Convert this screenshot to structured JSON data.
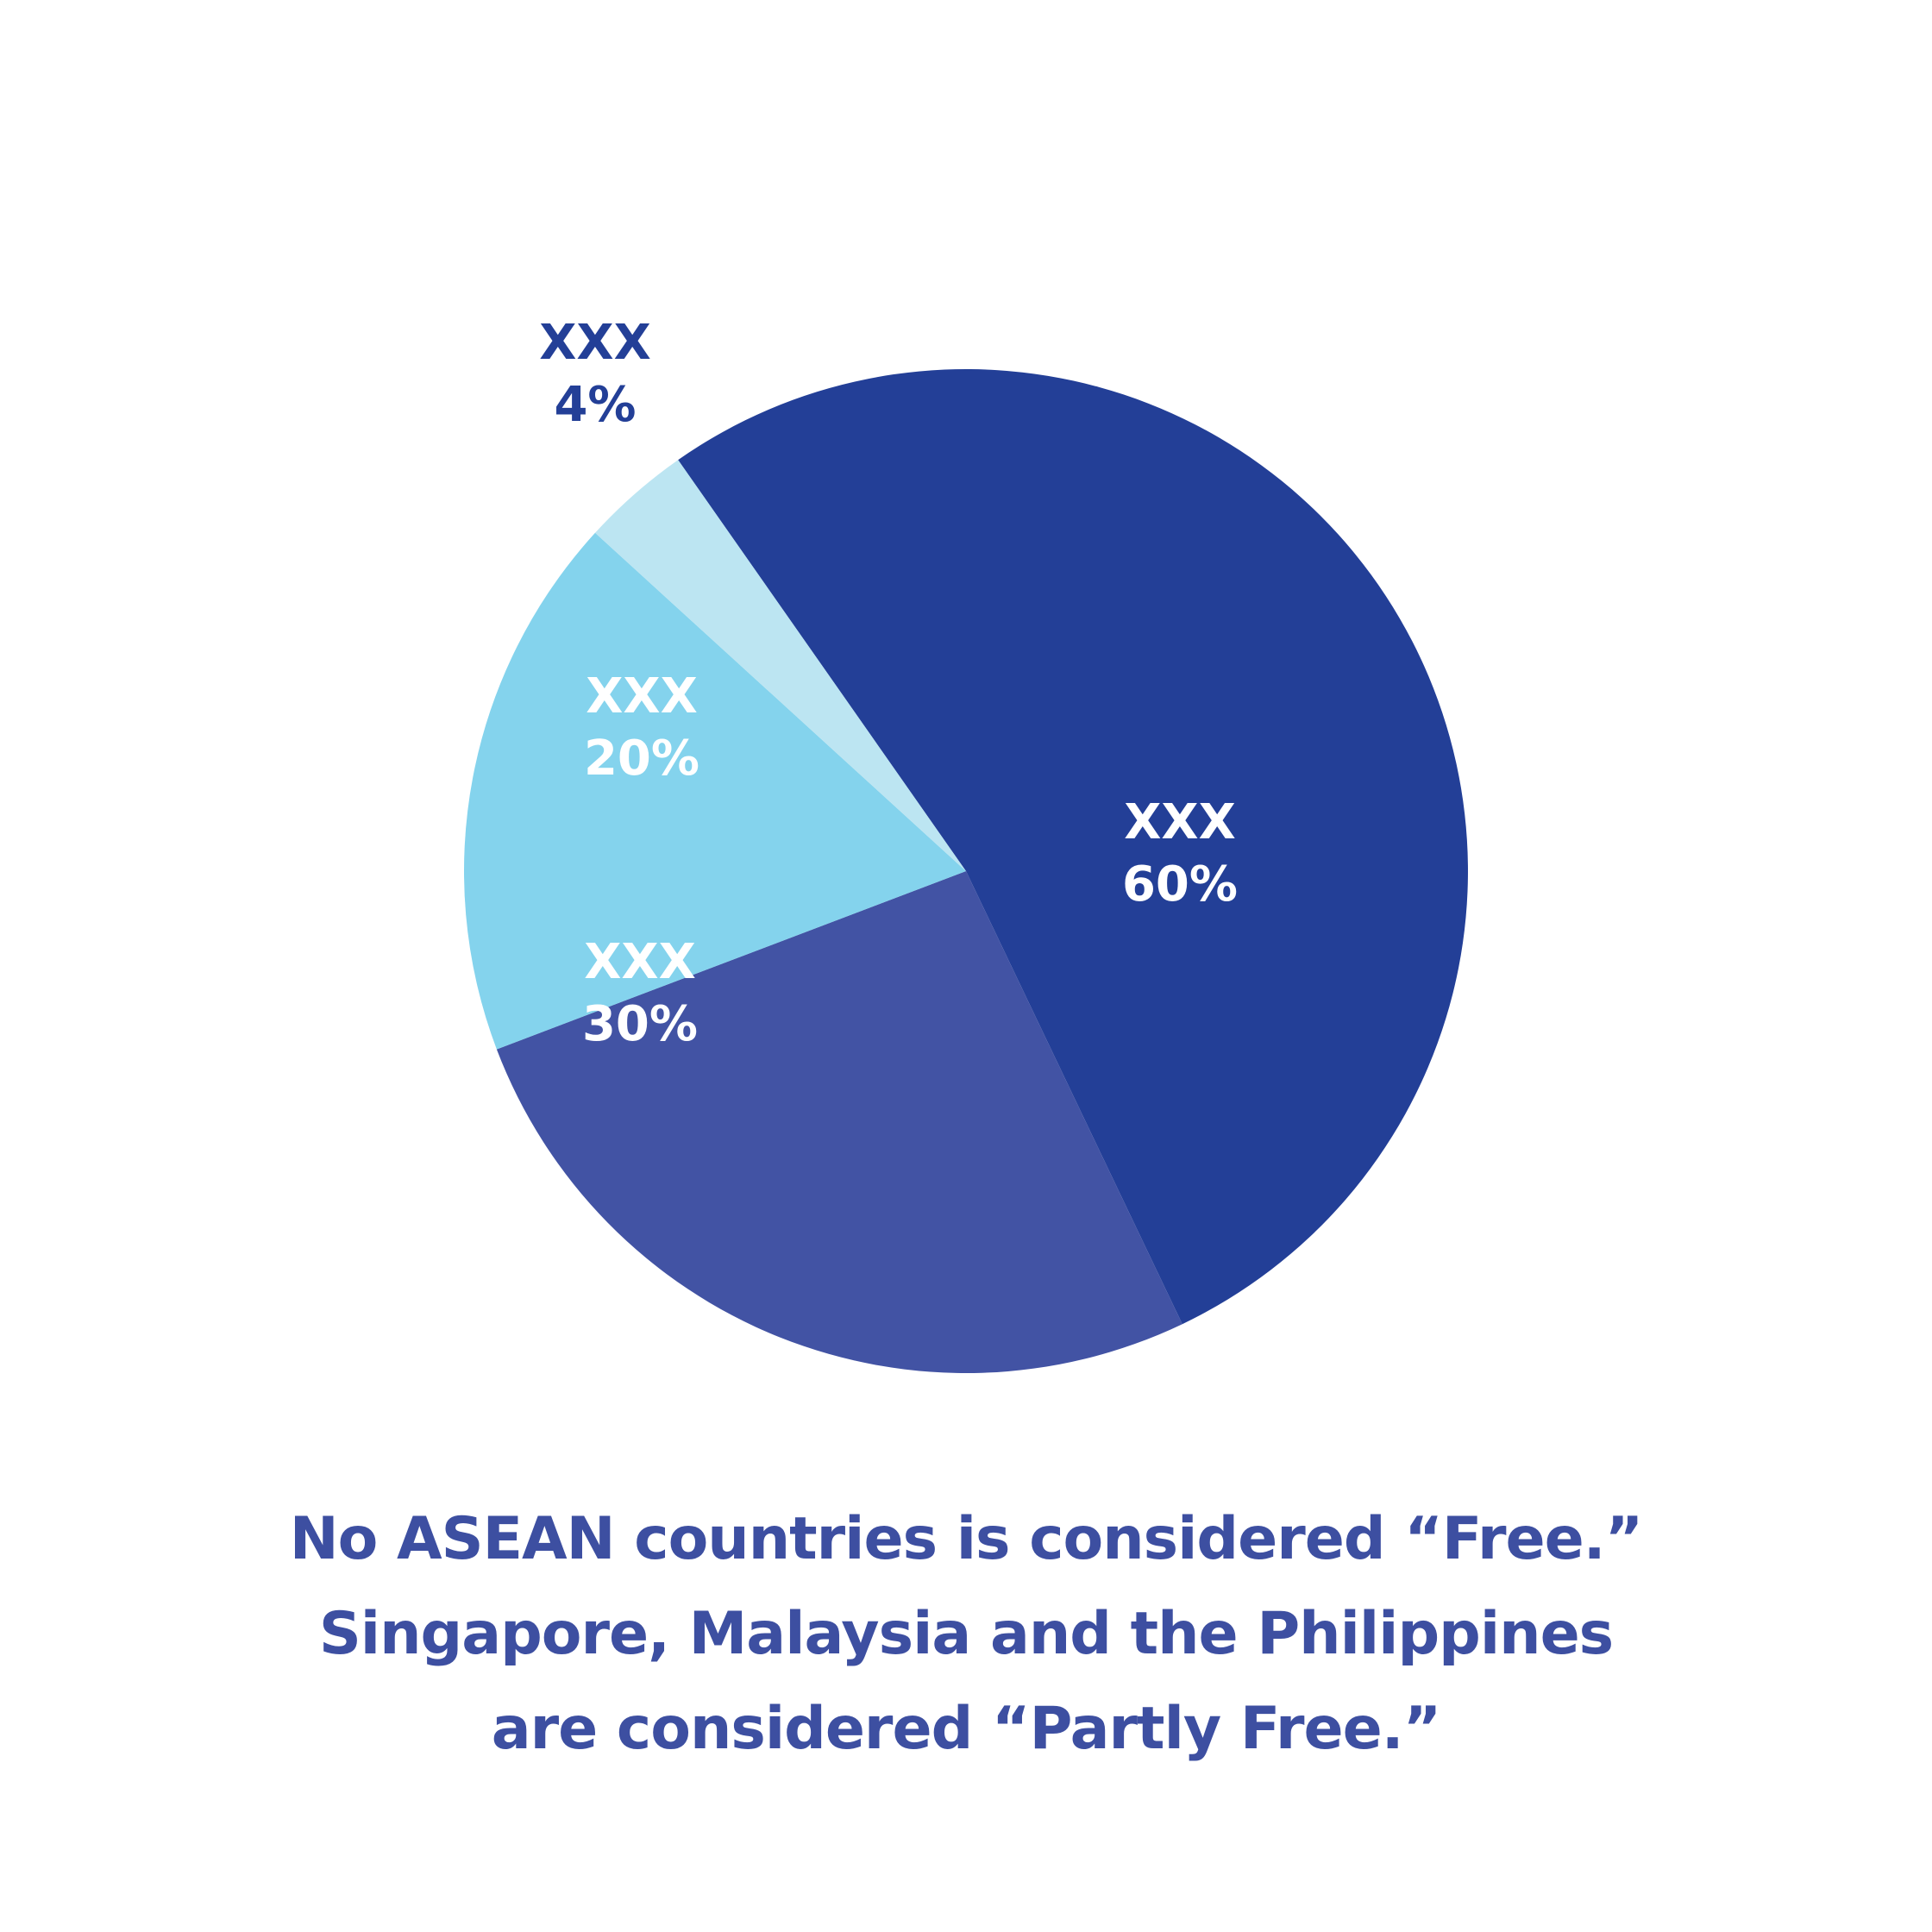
{
  "chart_data": {
    "type": "pie",
    "slices": [
      {
        "label": "XXX",
        "value": 60,
        "value_text": "60%",
        "color": "#233f97",
        "label_color": "#ffffff"
      },
      {
        "label": "XXX",
        "value": 30,
        "value_text": "30%",
        "color": "#4253a4",
        "label_color": "#ffffff"
      },
      {
        "label": "XXX",
        "value": 20,
        "value_text": "20%",
        "color": "#84d3ed",
        "label_color": "#ffffff"
      },
      {
        "label": "XXX",
        "value": 4,
        "value_text": "4%",
        "color": "#bce5f2",
        "label_color": "#233f97"
      }
    ]
  },
  "caption": {
    "lines": [
      "No ASEAN countries is considered “Free.”",
      "Singapore, Malaysia and the Philippines",
      "are considered “Partly Free.”"
    ]
  }
}
